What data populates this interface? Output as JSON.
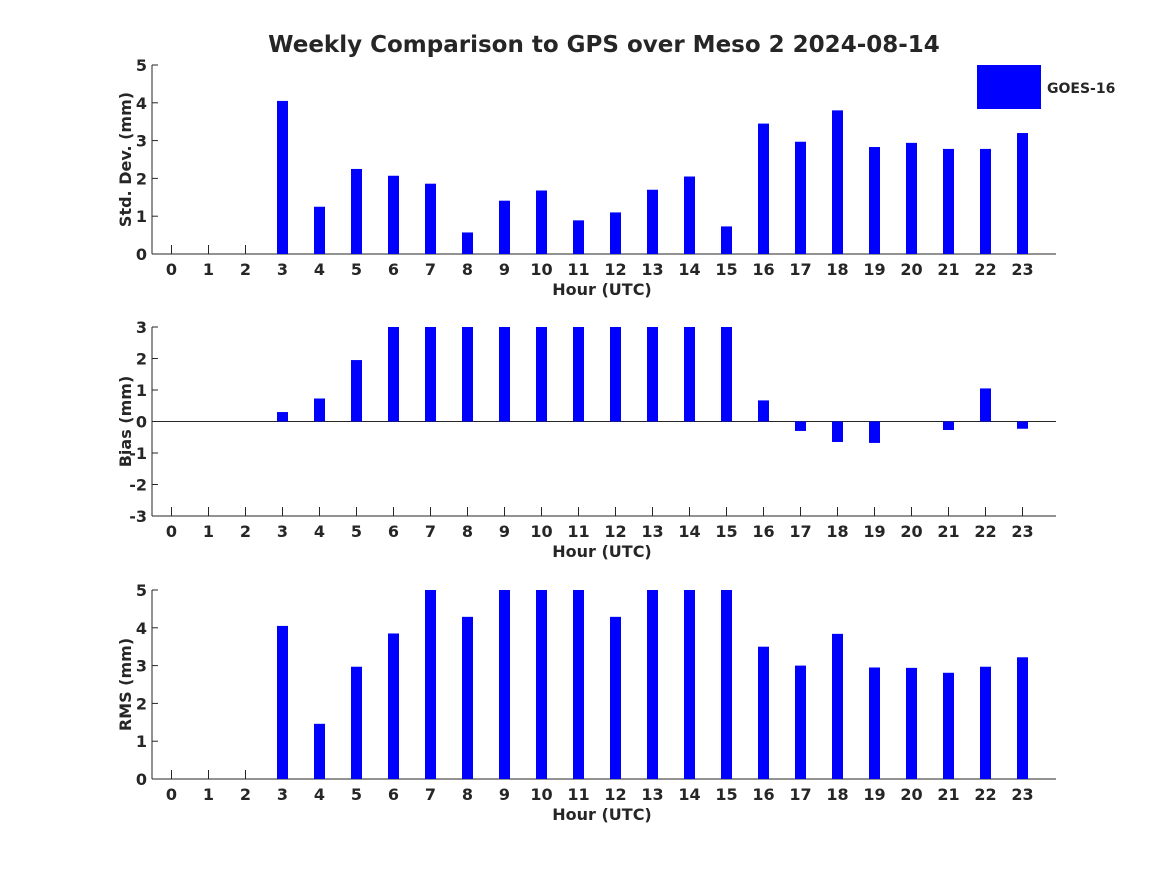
{
  "title": "Weekly Comparison to GPS over Meso 2 2024-08-14",
  "colors": {
    "bar": "#0000ff",
    "axis": "#262626",
    "background": "#ffffff"
  },
  "legend": {
    "label": "GOES-16",
    "placement": "top-right"
  },
  "chart_data": [
    {
      "type": "bar",
      "xlabel": "Hour (UTC)",
      "ylabel": "Std. Dev. (mm)",
      "ylim": [
        0,
        5
      ],
      "yticks": [
        0,
        1,
        2,
        3,
        4,
        5
      ],
      "categories": [
        "0",
        "1",
        "2",
        "3",
        "4",
        "5",
        "6",
        "7",
        "8",
        "9",
        "10",
        "11",
        "12",
        "13",
        "14",
        "15",
        "16",
        "17",
        "18",
        "19",
        "20",
        "21",
        "22",
        "23"
      ],
      "series": [
        {
          "name": "GOES-16",
          "values": [
            null,
            null,
            null,
            4.05,
            1.25,
            2.25,
            2.07,
            1.86,
            0.57,
            1.41,
            1.68,
            0.89,
            1.1,
            1.7,
            2.05,
            0.73,
            3.45,
            2.97,
            3.8,
            2.83,
            2.94,
            2.78,
            2.78,
            3.2
          ]
        }
      ]
    },
    {
      "type": "bar",
      "xlabel": "Hour (UTC)",
      "ylabel": "Bias (mm)",
      "ylim": [
        -3,
        3
      ],
      "yticks": [
        -3,
        -2,
        -1,
        0,
        1,
        2,
        3
      ],
      "categories": [
        "0",
        "1",
        "2",
        "3",
        "4",
        "5",
        "6",
        "7",
        "8",
        "9",
        "10",
        "11",
        "12",
        "13",
        "14",
        "15",
        "16",
        "17",
        "18",
        "19",
        "20",
        "21",
        "22",
        "23"
      ],
      "series": [
        {
          "name": "GOES-16",
          "values": [
            null,
            null,
            null,
            0.3,
            0.73,
            1.95,
            3.0,
            3.0,
            3.0,
            3.0,
            3.0,
            3.0,
            3.0,
            3.0,
            3.0,
            3.0,
            0.67,
            -0.3,
            -0.65,
            -0.68,
            null,
            -0.27,
            1.05,
            -0.23
          ]
        }
      ]
    },
    {
      "type": "bar",
      "xlabel": "Hour (UTC)",
      "ylabel": "RMS (mm)",
      "ylim": [
        0,
        5
      ],
      "yticks": [
        0,
        1,
        2,
        3,
        4,
        5
      ],
      "categories": [
        "0",
        "1",
        "2",
        "3",
        "4",
        "5",
        "6",
        "7",
        "8",
        "9",
        "10",
        "11",
        "12",
        "13",
        "14",
        "15",
        "16",
        "17",
        "18",
        "19",
        "20",
        "21",
        "22",
        "23"
      ],
      "series": [
        {
          "name": "GOES-16",
          "values": [
            null,
            null,
            null,
            4.05,
            1.46,
            2.97,
            3.85,
            5.0,
            4.29,
            5.0,
            5.0,
            5.0,
            4.29,
            5.0,
            5.0,
            5.0,
            3.5,
            3.0,
            3.84,
            2.95,
            2.94,
            2.81,
            2.97,
            3.22
          ]
        }
      ]
    }
  ]
}
